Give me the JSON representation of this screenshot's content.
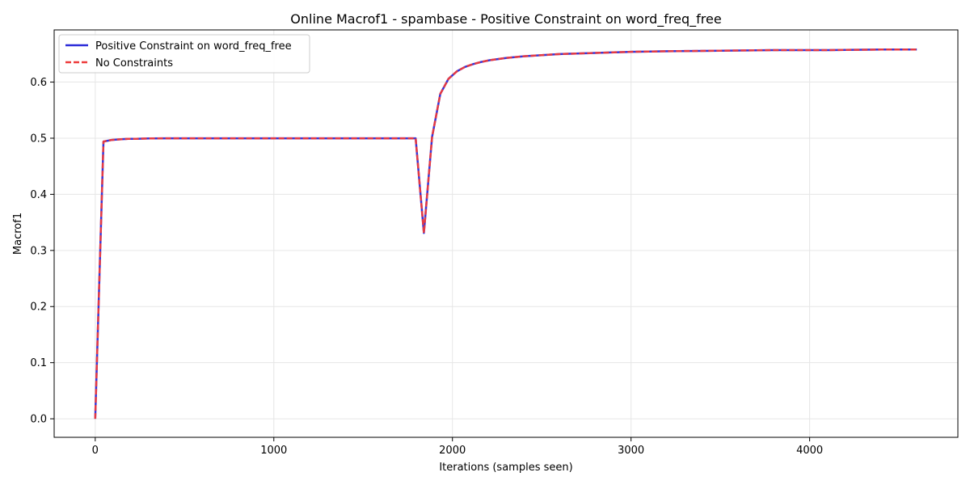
{
  "chart_data": {
    "type": "line",
    "title": "Online Macrof1 - spambase - Positive Constraint on word_freq_free",
    "xlabel": "Iterations (samples seen)",
    "ylabel": "Macrof1",
    "xlim": [
      -230,
      4830
    ],
    "ylim": [
      -0.033,
      0.693
    ],
    "xticks": [
      0,
      1000,
      2000,
      3000,
      4000
    ],
    "xtick_labels": [
      "0",
      "1000",
      "2000",
      "3000",
      "4000"
    ],
    "yticks": [
      0.0,
      0.1,
      0.2,
      0.3,
      0.4,
      0.5,
      0.6
    ],
    "ytick_labels": [
      "0.0",
      "0.1",
      "0.2",
      "0.3",
      "0.4",
      "0.5",
      "0.6"
    ],
    "grid": true,
    "legend_position": "top-left",
    "series": [
      {
        "name": "Positive Constraint on word_freq_free",
        "color": "#2b2bd9",
        "style": "solid",
        "x": [
          0,
          46,
          92,
          138,
          184,
          230,
          300,
          400,
          500,
          700,
          1000,
          1400,
          1794,
          1840,
          1886,
          1932,
          1978,
          2024,
          2070,
          2116,
          2162,
          2208,
          2300,
          2400,
          2500,
          2600,
          2800,
          3000,
          3200,
          3500,
          3800,
          4100,
          4400,
          4600
        ],
        "y": [
          0.0,
          0.494,
          0.497,
          0.498,
          0.499,
          0.499,
          0.4995,
          0.4998,
          0.4998,
          0.4999,
          0.4999,
          0.4999,
          0.4999,
          0.331,
          0.502,
          0.579,
          0.606,
          0.619,
          0.627,
          0.632,
          0.636,
          0.639,
          0.643,
          0.646,
          0.648,
          0.65,
          0.652,
          0.654,
          0.655,
          0.656,
          0.657,
          0.657,
          0.658,
          0.658
        ]
      },
      {
        "name": "No Constraints",
        "color": "#ee3b3b",
        "style": "dashed",
        "x": [
          0,
          46,
          92,
          138,
          184,
          230,
          300,
          400,
          500,
          700,
          1000,
          1400,
          1794,
          1840,
          1886,
          1932,
          1978,
          2024,
          2070,
          2116,
          2162,
          2208,
          2300,
          2400,
          2500,
          2600,
          2800,
          3000,
          3200,
          3500,
          3800,
          4100,
          4400,
          4600
        ],
        "y": [
          0.0,
          0.494,
          0.497,
          0.498,
          0.499,
          0.499,
          0.4995,
          0.4998,
          0.4998,
          0.4999,
          0.4999,
          0.4999,
          0.4999,
          0.331,
          0.502,
          0.579,
          0.606,
          0.619,
          0.627,
          0.632,
          0.636,
          0.639,
          0.643,
          0.646,
          0.648,
          0.65,
          0.652,
          0.654,
          0.655,
          0.656,
          0.657,
          0.657,
          0.658,
          0.658
        ]
      }
    ]
  }
}
